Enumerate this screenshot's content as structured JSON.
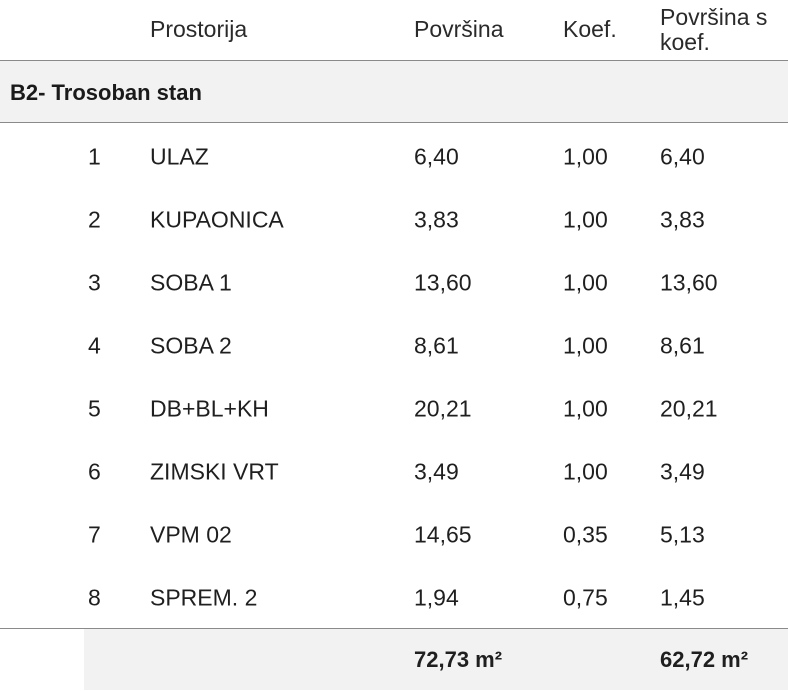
{
  "table": {
    "headers": {
      "room": "Prostorija",
      "area": "Površina",
      "koef": "Koef.",
      "area_koef_line1": "Površina s",
      "area_koef_line2": "koef."
    },
    "group_title": "B2- Trosoban stan",
    "rows": [
      {
        "num": "1",
        "room": "ULAZ",
        "area": "6,40",
        "koef": "1,00",
        "area_koef": "6,40"
      },
      {
        "num": "2",
        "room": "KUPAONICA",
        "area": "3,83",
        "koef": "1,00",
        "area_koef": "3,83"
      },
      {
        "num": "3",
        "room": "SOBA 1",
        "area": "13,60",
        "koef": "1,00",
        "area_koef": "13,60"
      },
      {
        "num": "4",
        "room": "SOBA 2",
        "area": "8,61",
        "koef": "1,00",
        "area_koef": "8,61"
      },
      {
        "num": "5",
        "room": "DB+BL+KH",
        "area": "20,21",
        "koef": "1,00",
        "area_koef": "20,21"
      },
      {
        "num": "6",
        "room": "ZIMSKI VRT",
        "area": "3,49",
        "koef": "1,00",
        "area_koef": "3,49"
      },
      {
        "num": "7",
        "room": "VPM 02",
        "area": "14,65",
        "koef": "0,35",
        "area_koef": "5,13"
      },
      {
        "num": "8",
        "room": "SPREM. 2",
        "area": "1,94",
        "koef": "0,75",
        "area_koef": "1,45"
      }
    ],
    "totals": {
      "area": "72,73 m²",
      "area_koef": "62,72 m²"
    }
  }
}
